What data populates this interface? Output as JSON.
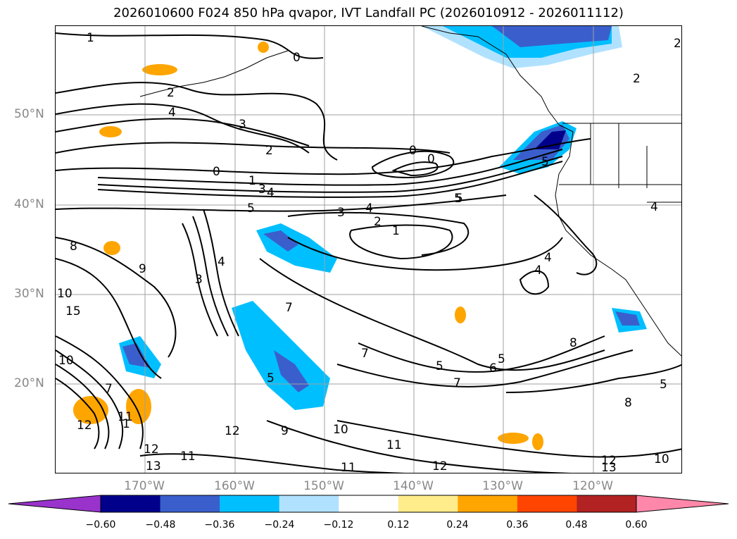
{
  "title": "2026010600 F024 850 hPa qvapor, IVT Landfall PC (2026010912 - 2026011112)",
  "map": {
    "lat_labels": [
      "50°N",
      "40°N",
      "30°N",
      "20°N"
    ],
    "lon_labels": [
      "170°W",
      "160°W",
      "150°W",
      "140°W",
      "130°W",
      "120°W"
    ],
    "contour_labels": [
      "1",
      "0",
      "2",
      "2",
      "4",
      "3",
      "2",
      "0",
      "0",
      "0",
      "1",
      "3",
      "4",
      "5",
      "3",
      "4",
      "2",
      "1",
      "5",
      "8",
      "9",
      "3",
      "4",
      "4",
      "4",
      "5",
      "5",
      "6",
      "7",
      "7",
      "5",
      "7",
      "8",
      "5",
      "8",
      "10",
      "12",
      "11",
      "12",
      "12",
      "9",
      "10",
      "11",
      "12",
      "13",
      "15",
      "10",
      "11",
      "7",
      "12",
      "11",
      "13",
      "10",
      "1",
      "4",
      "5",
      "2",
      "5"
    ],
    "grid_color": "#a0a0a0"
  },
  "colorbar": {
    "tick_labels": [
      "−0.60",
      "−0.48",
      "−0.36",
      "−0.24",
      "−0.12",
      "0.12",
      "0.24",
      "0.36",
      "0.48",
      "0.60"
    ],
    "colors": [
      "#9933cc",
      "#00008b",
      "#3a5fcd",
      "#00bfff",
      "#b0e2ff",
      "#ffffff",
      "#ffec8b",
      "#ffa500",
      "#ff4500",
      "#b22222",
      "#ff88aa"
    ]
  }
}
